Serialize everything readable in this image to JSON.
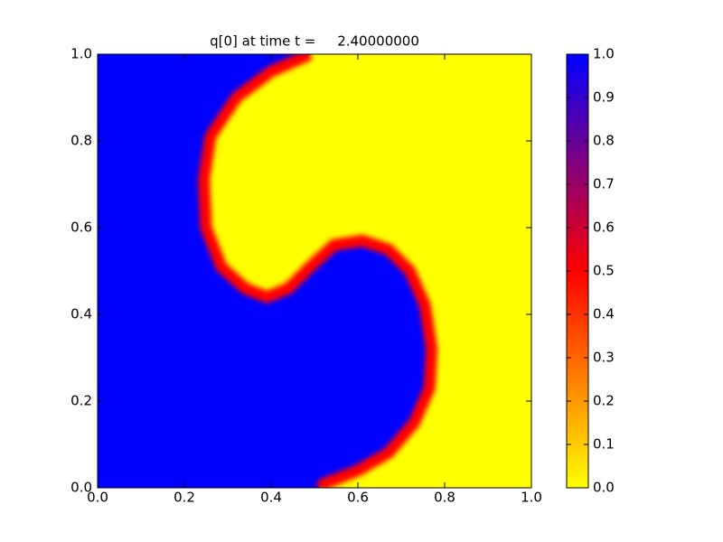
{
  "chart_data": {
    "type": "contour-field",
    "title": "q[0] at time t =     2.40000000",
    "xlim": [
      0,
      1
    ],
    "ylim": [
      0,
      1
    ],
    "xticks": [
      {
        "value": 0,
        "label": "0.0"
      },
      {
        "value": 0.2,
        "label": "0.2"
      },
      {
        "value": 0.4,
        "label": "0.4"
      },
      {
        "value": 0.6,
        "label": "0.6"
      },
      {
        "value": 0.8,
        "label": "0.8"
      },
      {
        "value": 1,
        "label": "1.0"
      }
    ],
    "yticks": [
      {
        "value": 0,
        "label": "0.0"
      },
      {
        "value": 0.2,
        "label": "0.2"
      },
      {
        "value": 0.4,
        "label": "0.4"
      },
      {
        "value": 0.6,
        "label": "0.6"
      },
      {
        "value": 0.8,
        "label": "0.8"
      },
      {
        "value": 1,
        "label": "1.0"
      }
    ],
    "contour": {
      "level": 0.5,
      "x": [
        0.49,
        0.4,
        0.32,
        0.26,
        0.245,
        0.25,
        0.285,
        0.34,
        0.39,
        0.44,
        0.49,
        0.545,
        0.61,
        0.67,
        0.72,
        0.755,
        0.77,
        0.765,
        0.73,
        0.67,
        0.6,
        0.525,
        0.51
      ],
      "y": [
        1.0,
        0.96,
        0.9,
        0.81,
        0.71,
        0.6,
        0.51,
        0.46,
        0.44,
        0.46,
        0.51,
        0.56,
        0.57,
        0.55,
        0.5,
        0.42,
        0.32,
        0.23,
        0.15,
        0.08,
        0.04,
        0.01,
        0.0
      ]
    },
    "inside_value": 1,
    "outside_value": 0,
    "colormap": {
      "stops": [
        0,
        0.5,
        1
      ],
      "colors": [
        "#ffff00",
        "#ff0000",
        "#0000ff"
      ]
    },
    "colorbar": {
      "lim": [
        0,
        1
      ],
      "ticks": [
        {
          "value": 0,
          "label": "0.0"
        },
        {
          "value": 0.1,
          "label": "0.1"
        },
        {
          "value": 0.2,
          "label": "0.2"
        },
        {
          "value": 0.3,
          "label": "0.3"
        },
        {
          "value": 0.4,
          "label": "0.4"
        },
        {
          "value": 0.5,
          "label": "0.5"
        },
        {
          "value": 0.6,
          "label": "0.6"
        },
        {
          "value": 0.7,
          "label": "0.7"
        },
        {
          "value": 0.8,
          "label": "0.8"
        },
        {
          "value": 0.9,
          "label": "0.9"
        },
        {
          "value": 1,
          "label": "1.0"
        }
      ]
    }
  }
}
